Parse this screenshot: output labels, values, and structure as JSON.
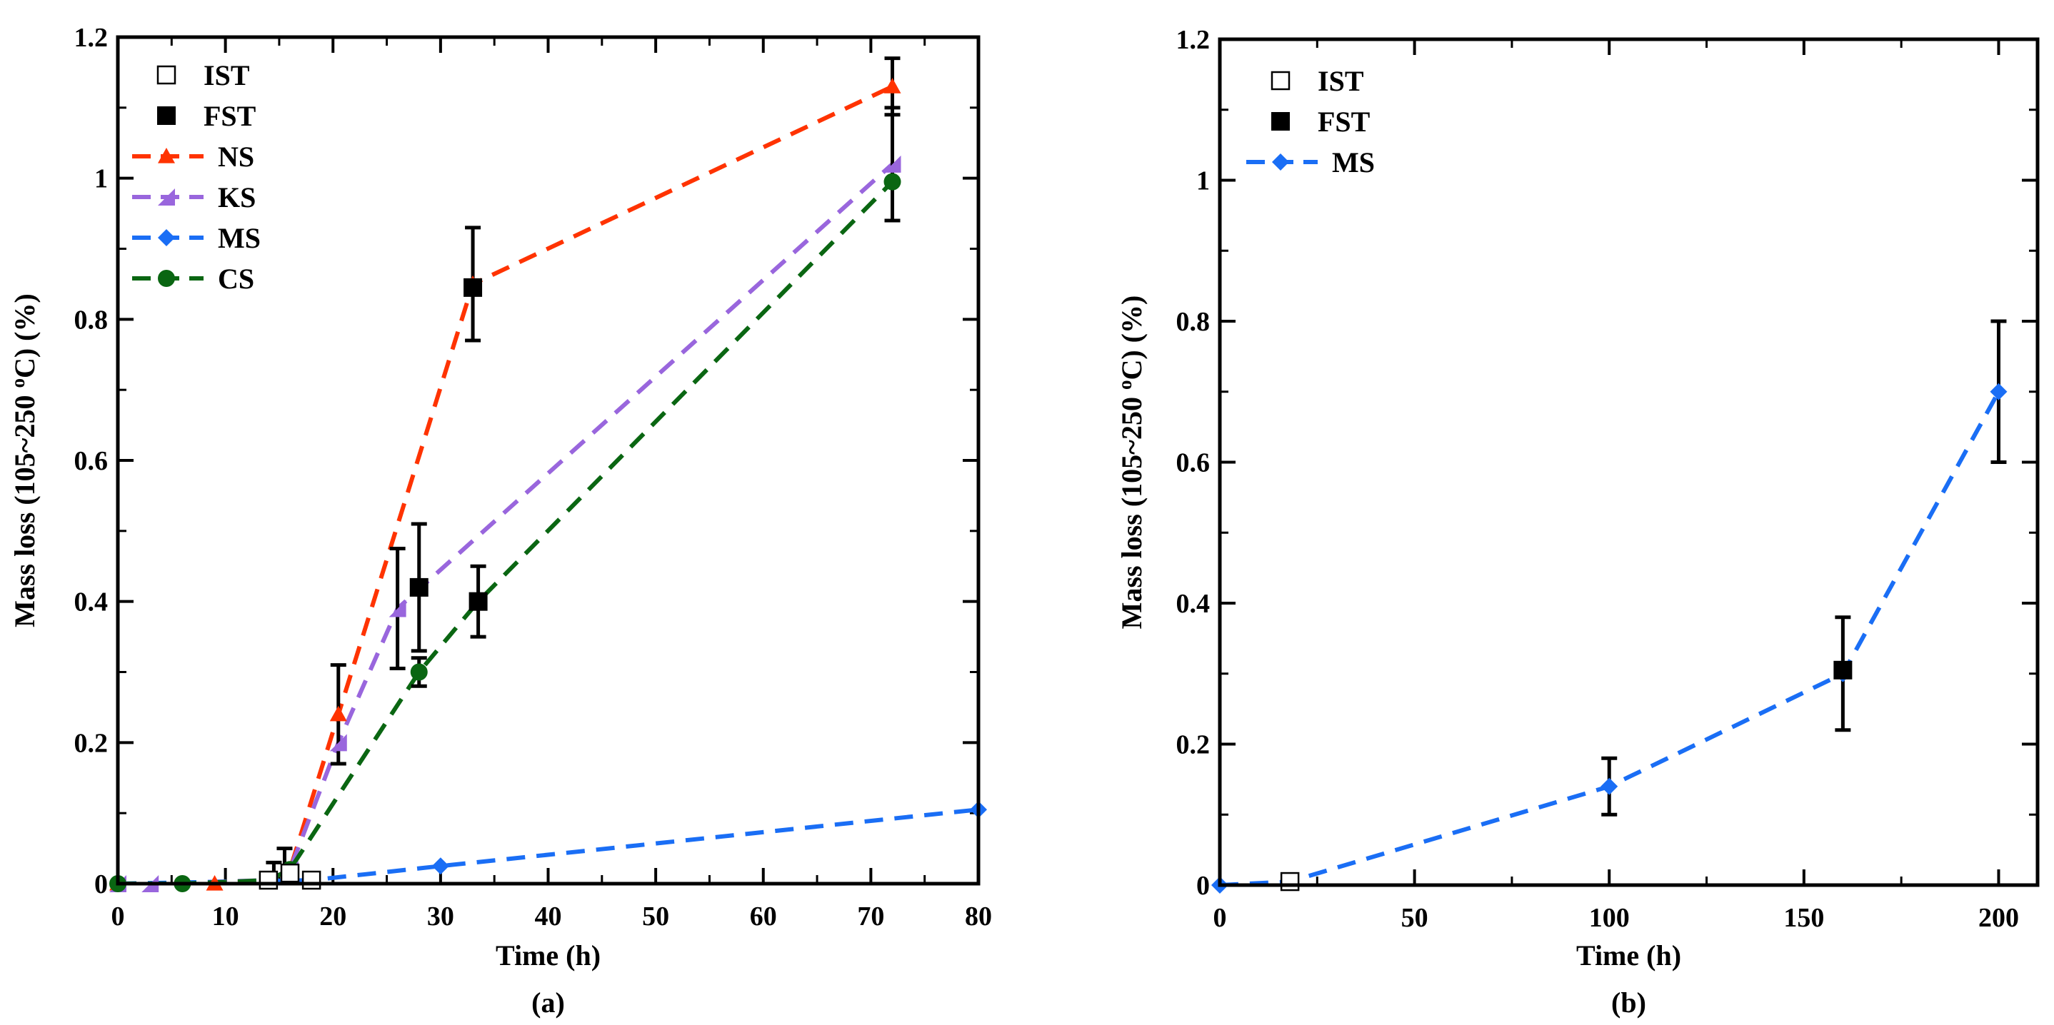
{
  "chart_data": [
    {
      "id": "a",
      "type": "line",
      "panel_label": "(a)",
      "xlabel": "Time (h)",
      "ylabel": "Mass loss (105~250 °C) (%)",
      "xlim": [
        0,
        80
      ],
      "ylim": [
        0,
        1.2
      ],
      "xticks": [
        0,
        10,
        20,
        30,
        40,
        50,
        60,
        70,
        80
      ],
      "xtick_labels": [
        "0",
        "10",
        "20",
        "30",
        "40",
        "50",
        "60",
        "70",
        "80"
      ],
      "yticks": [
        0,
        0.2,
        0.4,
        0.6,
        0.8,
        1.0,
        1.2
      ],
      "ytick_labels": [
        "0",
        "0.2",
        "0.4",
        "0.6",
        "0.8",
        "1",
        "1.2"
      ],
      "legend": {
        "position": "top-left",
        "entries": [
          {
            "label": "IST",
            "marker": "open-square",
            "color": "#000000"
          },
          {
            "label": "FST",
            "marker": "filled-square",
            "color": "#000000"
          },
          {
            "label": "NS",
            "marker": "triangle",
            "color": "#ff3300"
          },
          {
            "label": "KS",
            "marker": "right-triangle",
            "color": "#9966dd"
          },
          {
            "label": "MS",
            "marker": "diamond",
            "color": "#1a6ef5"
          },
          {
            "label": "CS",
            "marker": "circle",
            "color": "#0a6612"
          }
        ]
      },
      "series": [
        {
          "name": "NS",
          "color": "#ff3300",
          "marker": "triangle",
          "x": [
            0,
            9,
            14,
            16,
            20.5,
            33,
            72
          ],
          "y": [
            0,
            0,
            0.005,
            0.02,
            0.24,
            0.85,
            1.13
          ]
        },
        {
          "name": "KS",
          "color": "#9966dd",
          "marker": "right-triangle",
          "x": [
            0,
            3,
            14,
            16,
            20.5,
            26,
            72
          ],
          "y": [
            0,
            0,
            0.005,
            0.02,
            0.2,
            0.39,
            1.02
          ]
        },
        {
          "name": "MS",
          "color": "#1a6ef5",
          "marker": "diamond",
          "x": [
            0,
            18,
            30,
            80
          ],
          "y": [
            0,
            0.005,
            0.025,
            0.105
          ]
        },
        {
          "name": "CS",
          "color": "#0a6612",
          "marker": "circle",
          "x": [
            0,
            6,
            14,
            16,
            28,
            33.5,
            72
          ],
          "y": [
            0,
            0,
            0.005,
            0.02,
            0.3,
            0.4,
            0.995
          ]
        }
      ],
      "ist_points": [
        {
          "x": 14,
          "y": 0.005
        },
        {
          "x": 16,
          "y": 0.015
        },
        {
          "x": 18,
          "y": 0.005
        }
      ],
      "fst_points": [
        {
          "x": 33,
          "y": 0.845
        },
        {
          "x": 28,
          "y": 0.42
        },
        {
          "x": 33.5,
          "y": 0.4
        }
      ],
      "error_bars": [
        {
          "x": 20.5,
          "low": 0.17,
          "high": 0.31
        },
        {
          "x": 26,
          "low": 0.305,
          "high": 0.475
        },
        {
          "x": 28,
          "low": 0.33,
          "high": 0.51
        },
        {
          "x": 28,
          "low": 0.28,
          "high": 0.32
        },
        {
          "x": 33,
          "low": 0.77,
          "high": 0.93
        },
        {
          "x": 33.5,
          "low": 0.35,
          "high": 0.45
        },
        {
          "x": 72,
          "low": 1.09,
          "high": 1.17
        },
        {
          "x": 72,
          "low": 0.94,
          "high": 1.1
        },
        {
          "x": 15.5,
          "low": 0.0,
          "high": 0.05
        },
        {
          "x": 14.5,
          "low": 0.0,
          "high": 0.03
        }
      ]
    },
    {
      "id": "b",
      "type": "line",
      "panel_label": "(b)",
      "xlabel": "Time (h)",
      "ylabel": "Mass loss (105~250 °C) (%)",
      "xlim": [
        0,
        210
      ],
      "ylim": [
        0,
        1.2
      ],
      "xticks": [
        0,
        50,
        100,
        150,
        200
      ],
      "xtick_labels": [
        "0",
        "50",
        "100",
        "150",
        "200"
      ],
      "yticks": [
        0,
        0.2,
        0.4,
        0.6,
        0.8,
        1.0,
        1.2
      ],
      "ytick_labels": [
        "0",
        "0.2",
        "0.4",
        "0.6",
        "0.8",
        "1",
        "1.2"
      ],
      "legend": {
        "position": "top-left",
        "entries": [
          {
            "label": "IST",
            "marker": "open-square",
            "color": "#000000"
          },
          {
            "label": "FST",
            "marker": "filled-square",
            "color": "#000000"
          },
          {
            "label": "MS",
            "marker": "diamond",
            "color": "#1a6ef5"
          }
        ]
      },
      "series": [
        {
          "name": "MS",
          "color": "#1a6ef5",
          "marker": "diamond",
          "x": [
            0,
            18,
            100,
            160,
            200
          ],
          "y": [
            0,
            0.005,
            0.14,
            0.3,
            0.7
          ]
        }
      ],
      "ist_points": [
        {
          "x": 18,
          "y": 0.005
        }
      ],
      "fst_points": [
        {
          "x": 160,
          "y": 0.305
        }
      ],
      "error_bars": [
        {
          "x": 100,
          "low": 0.1,
          "high": 0.18
        },
        {
          "x": 160,
          "low": 0.22,
          "high": 0.38
        },
        {
          "x": 200,
          "low": 0.6,
          "high": 0.8
        }
      ]
    }
  ]
}
